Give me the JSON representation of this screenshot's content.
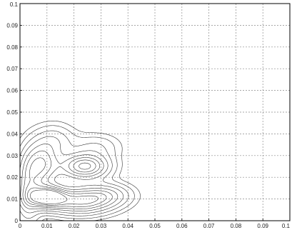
{
  "chart_data": {
    "type": "contour",
    "title": "",
    "xlabel": "",
    "ylabel": "",
    "xlim": [
      0,
      0.1
    ],
    "ylim": [
      0,
      0.1
    ],
    "grid": true,
    "x_ticks": [
      "0",
      "0.01",
      "0.02",
      "0.03",
      "0.04",
      "0.05",
      "0.06",
      "0.07",
      "0.08",
      "0.09",
      "0.1"
    ],
    "y_ticks": [
      "0",
      "0.01",
      "0.02",
      "0.03",
      "0.04",
      "0.05",
      "0.06",
      "0.07",
      "0.08",
      "0.09",
      "0.1"
    ],
    "density_peaks": [
      {
        "x": 0.01,
        "y": 0.011,
        "sx": 0.0045,
        "sy": 0.0032,
        "weight": 1.0
      },
      {
        "x": 0.022,
        "y": 0.009,
        "sx": 0.008,
        "sy": 0.004,
        "weight": 0.75
      },
      {
        "x": 0.024,
        "y": 0.025,
        "sx": 0.0058,
        "sy": 0.0038,
        "weight": 0.8
      },
      {
        "x": 0.008,
        "y": 0.026,
        "sx": 0.0042,
        "sy": 0.007,
        "weight": 0.6
      },
      {
        "x": 0.003,
        "y": 0.015,
        "sx": 0.003,
        "sy": 0.01,
        "weight": 0.45
      },
      {
        "x": 0.032,
        "y": 0.012,
        "sx": 0.006,
        "sy": 0.0035,
        "weight": 0.35
      },
      {
        "x": 0.013,
        "y": 0.037,
        "sx": 0.005,
        "sy": 0.005,
        "weight": 0.22
      },
      {
        "x": 0.028,
        "y": 0.034,
        "sx": 0.006,
        "sy": 0.004,
        "weight": 0.18
      }
    ],
    "contour_levels": [
      0.05,
      0.1,
      0.18,
      0.28,
      0.4,
      0.52,
      0.64,
      0.76,
      0.88
    ]
  }
}
